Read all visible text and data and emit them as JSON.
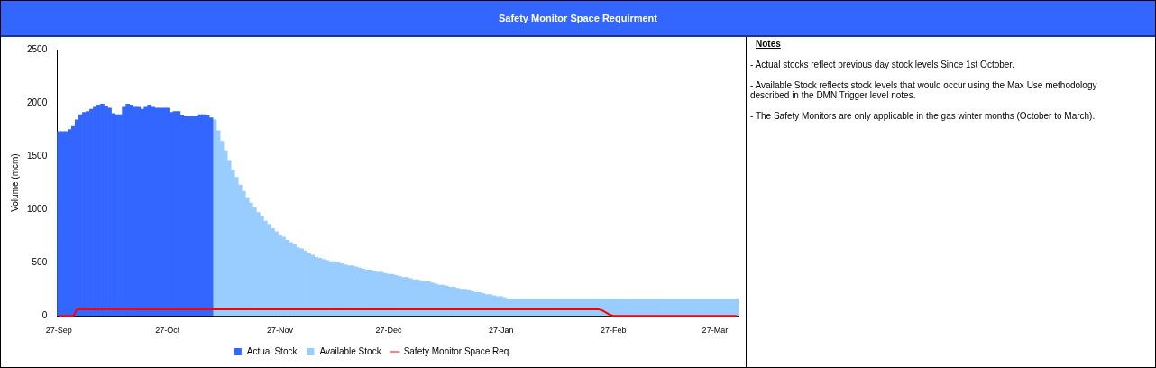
{
  "chart_data": {
    "type": "bar",
    "title": "Safety Monitor Space Requirment",
    "ylabel": "Volume (mcm)",
    "ylim": [
      0,
      2500
    ],
    "yticks": [
      0,
      500,
      1000,
      1500,
      2000,
      2500
    ],
    "legend": "bottom",
    "marker": "none",
    "categories": [
      "27-Sep",
      null,
      null,
      null,
      null,
      null,
      null,
      null,
      null,
      null,
      null,
      null,
      null,
      null,
      null,
      null,
      null,
      null,
      null,
      null,
      null,
      null,
      null,
      null,
      null,
      null,
      null,
      null,
      null,
      null,
      "27-Oct",
      null,
      null,
      null,
      null,
      null,
      null,
      null,
      null,
      null,
      null,
      null,
      null,
      null,
      null,
      null,
      null,
      null,
      null,
      null,
      null,
      null,
      null,
      null,
      null,
      null,
      null,
      null,
      null,
      null,
      null,
      "27-Nov",
      null,
      null,
      null,
      null,
      null,
      null,
      null,
      null,
      null,
      null,
      null,
      null,
      null,
      null,
      null,
      null,
      null,
      null,
      null,
      null,
      null,
      null,
      null,
      null,
      null,
      null,
      null,
      null,
      null,
      "27-Dec",
      null,
      null,
      null,
      null,
      null,
      null,
      null,
      null,
      null,
      null,
      null,
      null,
      null,
      null,
      null,
      null,
      null,
      null,
      null,
      null,
      null,
      null,
      null,
      null,
      null,
      null,
      null,
      null,
      null,
      null,
      "27-Jan",
      null,
      null,
      null,
      null,
      null,
      null,
      null,
      null,
      null,
      null,
      null,
      null,
      null,
      null,
      null,
      null,
      null,
      null,
      null,
      null,
      null,
      null,
      null,
      null,
      null,
      null,
      null,
      null,
      null,
      null,
      "27-Feb",
      null,
      null,
      null,
      null,
      null,
      null,
      null,
      null,
      null,
      null,
      null,
      null,
      null,
      null,
      null,
      null,
      null,
      null,
      null,
      null,
      null,
      null,
      null,
      null,
      null,
      null,
      null,
      "27-Mar",
      null,
      null,
      null,
      null,
      null,
      null
    ],
    "series": [
      {
        "name": "Actual Stock",
        "color": "#3366ff",
        "values": [
          1730,
          1730,
          1730,
          1750,
          1780,
          1840,
          1890,
          1910,
          1920,
          1940,
          1960,
          1980,
          1990,
          1970,
          1950,
          1900,
          1890,
          1890,
          1960,
          1990,
          1980,
          1960,
          1960,
          1940,
          1960,
          1980,
          1960,
          1950,
          1950,
          1950,
          1950,
          1910,
          1920,
          1920,
          1880,
          1870,
          1870,
          1870,
          1870,
          1890,
          1890,
          1880,
          1860,
          null,
          null,
          null,
          null,
          null,
          null,
          null,
          null,
          null,
          null,
          null,
          null,
          null,
          null,
          null,
          null,
          null,
          null,
          null,
          null,
          null,
          null,
          null,
          null,
          null,
          null,
          null,
          null,
          null,
          null,
          null,
          null,
          null,
          null,
          null,
          null,
          null,
          null,
          null,
          null,
          null,
          null,
          null,
          null,
          null,
          null,
          null,
          null,
          null,
          null,
          null,
          null,
          null,
          null,
          null,
          null,
          null,
          null,
          null,
          null,
          null,
          null,
          null,
          null,
          null,
          null,
          null,
          null,
          null,
          null,
          null,
          null,
          null,
          null,
          null,
          null,
          null,
          null,
          null,
          null,
          null,
          null,
          null,
          null,
          null,
          null,
          null,
          null,
          null,
          null,
          null,
          null,
          null,
          null,
          null,
          null,
          null,
          null,
          null,
          null,
          null,
          null,
          null,
          null,
          null,
          null,
          null,
          null,
          null,
          null,
          null,
          null,
          null,
          null,
          null,
          null,
          null,
          null,
          null,
          null,
          null,
          null,
          null,
          null,
          null,
          null,
          null,
          null,
          null,
          null,
          null,
          null,
          null,
          null,
          null,
          null,
          null,
          null,
          null,
          null,
          null,
          null,
          null,
          null,
          null
        ]
      },
      {
        "name": "Available Stock",
        "color": "#99ccff",
        "values": [
          null,
          null,
          null,
          null,
          null,
          null,
          null,
          null,
          null,
          null,
          null,
          null,
          null,
          null,
          null,
          null,
          null,
          null,
          null,
          null,
          null,
          null,
          null,
          null,
          null,
          null,
          null,
          null,
          null,
          null,
          null,
          null,
          null,
          null,
          null,
          null,
          null,
          null,
          null,
          null,
          null,
          null,
          null,
          1840,
          1740,
          1640,
          1550,
          1460,
          1370,
          1300,
          1230,
          1170,
          1110,
          1060,
          1020,
          970,
          930,
          890,
          860,
          820,
          790,
          760,
          740,
          710,
          690,
          670,
          640,
          630,
          610,
          590,
          570,
          550,
          540,
          530,
          520,
          510,
          510,
          500,
          490,
          480,
          470,
          470,
          460,
          450,
          440,
          430,
          430,
          420,
          410,
          410,
          400,
          390,
          390,
          380,
          370,
          360,
          360,
          350,
          340,
          340,
          330,
          320,
          320,
          310,
          300,
          290,
          290,
          280,
          270,
          270,
          260,
          250,
          250,
          240,
          230,
          220,
          220,
          210,
          200,
          200,
          190,
          180,
          180,
          170,
          160,
          160,
          160,
          160,
          160,
          160,
          160,
          160,
          160,
          160,
          160,
          160,
          160,
          160,
          160,
          160,
          160,
          160,
          160,
          160,
          160,
          160,
          160,
          160,
          160,
          160,
          160,
          160,
          160,
          160,
          160,
          160,
          160,
          160,
          160,
          160,
          160,
          160,
          160,
          160,
          160,
          160,
          160,
          160,
          160,
          160,
          160,
          160,
          160,
          160,
          160,
          160,
          160,
          160,
          160,
          160,
          160,
          160,
          160,
          160,
          160,
          160,
          160,
          160
        ]
      },
      {
        "name": "Safety Monitor Space Req.",
        "type": "line",
        "color": "#ff0000",
        "values": [
          0,
          0,
          0,
          0,
          0,
          60,
          60,
          60,
          60,
          60,
          60,
          60,
          60,
          60,
          60,
          60,
          60,
          60,
          60,
          60,
          60,
          60,
          60,
          60,
          60,
          60,
          60,
          60,
          60,
          60,
          60,
          60,
          60,
          60,
          60,
          60,
          60,
          60,
          60,
          60,
          60,
          60,
          60,
          60,
          60,
          60,
          60,
          60,
          60,
          60,
          60,
          60,
          60,
          60,
          60,
          60,
          60,
          60,
          60,
          60,
          60,
          60,
          60,
          60,
          60,
          60,
          60,
          60,
          60,
          60,
          60,
          60,
          60,
          60,
          60,
          60,
          60,
          60,
          60,
          60,
          60,
          60,
          60,
          60,
          60,
          60,
          60,
          60,
          60,
          60,
          60,
          60,
          60,
          60,
          60,
          60,
          60,
          60,
          60,
          60,
          60,
          60,
          60,
          60,
          60,
          60,
          60,
          60,
          60,
          60,
          60,
          60,
          60,
          60,
          60,
          60,
          60,
          60,
          60,
          60,
          60,
          60,
          60,
          60,
          60,
          60,
          60,
          60,
          60,
          60,
          60,
          60,
          60,
          60,
          60,
          60,
          60,
          60,
          60,
          60,
          60,
          60,
          60,
          60,
          60,
          60,
          60,
          60,
          60,
          60,
          50,
          30,
          10,
          0,
          0,
          0,
          0,
          0,
          0,
          0,
          0,
          0,
          0,
          0,
          0,
          0,
          0,
          0,
          0,
          0,
          0,
          0,
          0,
          0,
          0,
          0,
          0,
          0,
          0,
          0,
          0,
          0,
          0,
          0,
          0,
          0,
          0,
          0
        ]
      }
    ],
    "annotations": [
      "Notes",
      "- Actual stocks reflect previous day stock levels Since 1st October.",
      "- Available Stock reflects stock levels that would occur using the Max Use methodology described in the DMN Trigger level notes.",
      "- The Safety Monitors are only applicable in the gas winter months (October to March)."
    ]
  }
}
